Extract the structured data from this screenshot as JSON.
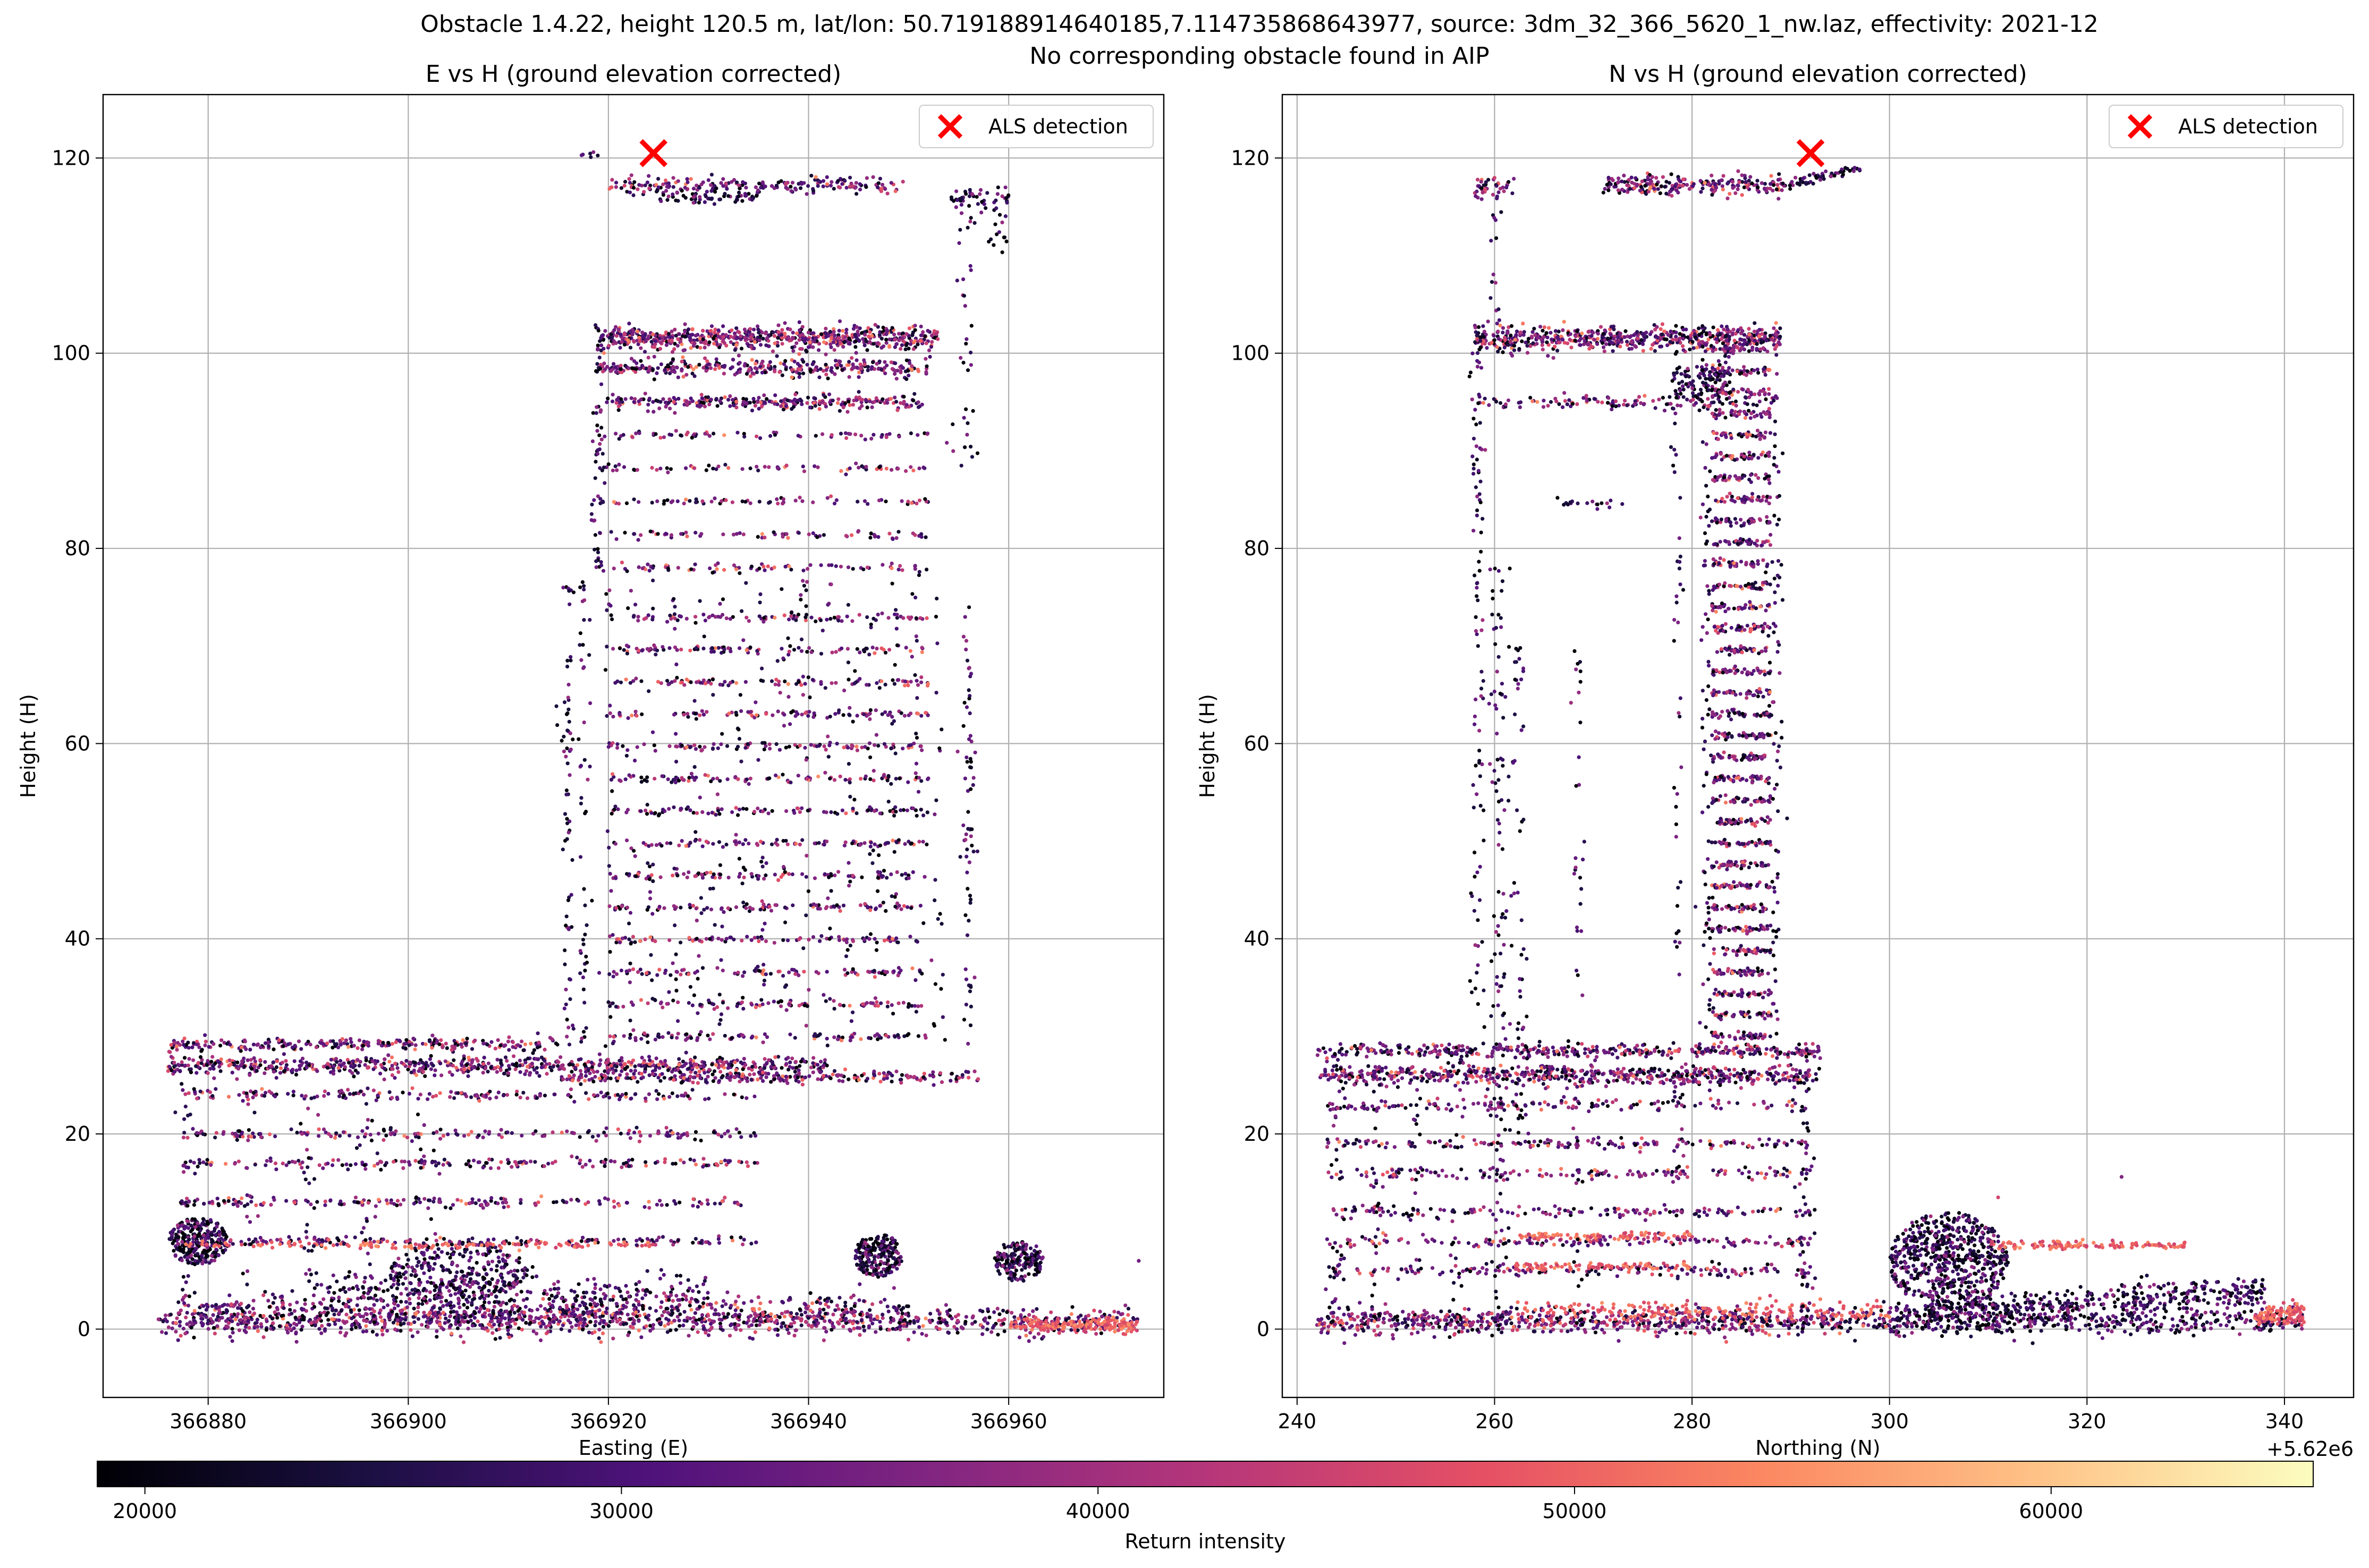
{
  "figure": {
    "suptitle_line1": "Obstacle 1.4.22, height 120.5 m, lat/lon: 50.719188914640185,7.114735868643977, source: 3dm_32_366_5620_1_nw.laz, effectivity: 2021-12",
    "suptitle_line2": "No corresponding obstacle found in AIP"
  },
  "colorbar": {
    "label": "Return intensity",
    "min": 19000,
    "max": 65500,
    "ticks": [
      "20000",
      "30000",
      "40000",
      "50000",
      "60000"
    ],
    "tick_values": [
      20000,
      30000,
      40000,
      50000,
      60000
    ],
    "colormap": "magma",
    "stops": [
      "#000004",
      "#1c1044",
      "#4f127b",
      "#812581",
      "#b5367a",
      "#e55064",
      "#fb8761",
      "#fec287",
      "#fcfdbf"
    ]
  },
  "chart_data": [
    {
      "type": "scatter",
      "title": "E vs H (ground elevation corrected)",
      "xlabel": "Easting (E)",
      "ylabel": "Height (H)",
      "xlim": [
        366869.5,
        366975.5
      ],
      "ylim": [
        -7,
        126.5
      ],
      "xticks": [
        "366880",
        "366900",
        "366920",
        "366940",
        "366960"
      ],
      "xtick_values": [
        366880,
        366900,
        366920,
        366940,
        366960
      ],
      "yticks": [
        "0",
        "20",
        "40",
        "60",
        "80",
        "100",
        "120"
      ],
      "ytick_values": [
        0,
        20,
        40,
        60,
        80,
        100,
        120
      ],
      "grid": true,
      "legend": {
        "position": "upper right",
        "entries": [
          "ALS detection"
        ]
      },
      "detection": {
        "x": 366924.5,
        "y": 120.5,
        "marker": "x",
        "color": "#ff0000"
      },
      "series": [
        {
          "name": "point cloud",
          "shape": "podium",
          "x_range": [
            366875,
            366973
          ],
          "floors": [
            1,
            9,
            13,
            17,
            20,
            24,
            27,
            29
          ]
        },
        {
          "name": "point cloud",
          "shape": "tower",
          "x_range": [
            366915,
            366957
          ],
          "y_range": [
            29,
            78
          ]
        },
        {
          "name": "point cloud",
          "shape": "tower-upper",
          "x_range": [
            366918,
            366952
          ],
          "y_range": [
            78,
            103
          ]
        },
        {
          "name": "point cloud",
          "shape": "roof",
          "x_range": [
            366920,
            366959
          ],
          "y_range": [
            115,
            120
          ]
        },
        {
          "name": "point cloud",
          "shape": "trees",
          "clusters": [
            [
              366878,
              9
            ],
            [
              366947,
              7
            ],
            [
              366961,
              7
            ]
          ]
        }
      ]
    },
    {
      "type": "scatter",
      "title": "N vs H (ground elevation corrected)",
      "xlabel": "Northing (N)",
      "ylabel": "Height (H)",
      "xlim": [
        5620238.5,
        5620347
      ],
      "ylim": [
        -7,
        126.5
      ],
      "xticks": [
        "240",
        "260",
        "280",
        "300",
        "320",
        "340"
      ],
      "xtick_values": [
        240,
        260,
        280,
        300,
        320,
        340
      ],
      "x_offset_label": "+5.62e6",
      "yticks": [
        "0",
        "20",
        "40",
        "60",
        "80",
        "100",
        "120"
      ],
      "ytick_values": [
        0,
        20,
        40,
        60,
        80,
        100,
        120
      ],
      "grid": true,
      "legend": {
        "position": "upper right",
        "entries": [
          "ALS detection"
        ]
      },
      "detection": {
        "x": 5620292,
        "y": 120.5,
        "marker": "x",
        "color": "#ff0000"
      },
      "series": [
        {
          "name": "point cloud",
          "shape": "podium",
          "x_range": [
            242,
            293
          ],
          "floors": [
            1,
            6,
            9,
            12,
            16,
            19,
            23,
            26,
            28
          ]
        },
        {
          "name": "point cloud",
          "shape": "tower",
          "x_range": [
            258,
            289
          ],
          "y_range": [
            29,
            103
          ]
        },
        {
          "name": "point cloud",
          "shape": "roof",
          "x_range": [
            258,
            297
          ],
          "y_range": [
            115,
            120
          ]
        },
        {
          "name": "point cloud",
          "shape": "trees",
          "clusters": [
            [
              305,
              7
            ],
            [
              320,
              3
            ],
            [
              334,
              2
            ]
          ]
        }
      ]
    }
  ]
}
